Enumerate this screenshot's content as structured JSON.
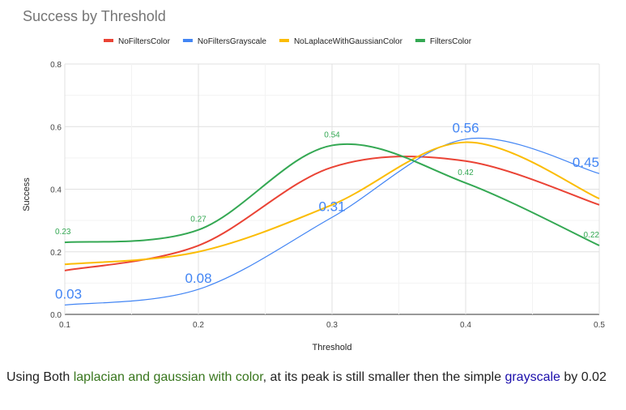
{
  "chart_data": {
    "type": "line",
    "title": "Success by Threshold",
    "xlabel": "Threshold",
    "ylabel": "Success",
    "x": [
      0.1,
      0.2,
      0.3,
      0.4,
      0.5
    ],
    "x_ticks": [
      "0.1",
      "0.2",
      "0.3",
      "0.4",
      "0.5"
    ],
    "y_ticks": [
      "0.0",
      "0.2",
      "0.4",
      "0.6",
      "0.8"
    ],
    "ylim": [
      0,
      0.8
    ],
    "xlim": [
      0.1,
      0.5
    ],
    "grid": true,
    "legend_position": "top",
    "series": [
      {
        "name": "NoFiltersColor",
        "color": "#ea4335",
        "values": [
          0.14,
          0.22,
          0.47,
          0.49,
          0.35
        ],
        "labels": []
      },
      {
        "name": "NoFiltersGrayscale",
        "color": "#4285f4",
        "values": [
          0.03,
          0.08,
          0.31,
          0.56,
          0.45
        ],
        "labels": [
          "0.03",
          "0.08",
          "0.31",
          "0.56",
          "0.45"
        ]
      },
      {
        "name": "NoLaplaceWithGaussianColor",
        "color": "#fbbc04",
        "values": [
          0.16,
          0.2,
          0.35,
          0.55,
          0.37
        ],
        "labels": []
      },
      {
        "name": "FiltersColor",
        "color": "#34a853",
        "values": [
          0.23,
          0.27,
          0.54,
          0.42,
          0.22
        ],
        "labels": [
          "0.23",
          "0.27",
          "0.54",
          "0.42",
          "0.22"
        ]
      }
    ]
  },
  "caption": {
    "part1": "Using Both ",
    "part2": "laplacian and gaussian with color",
    "part3": ", at its peak is still smaller then the simple ",
    "part4": "grayscale",
    "part5": " by 0.02"
  }
}
